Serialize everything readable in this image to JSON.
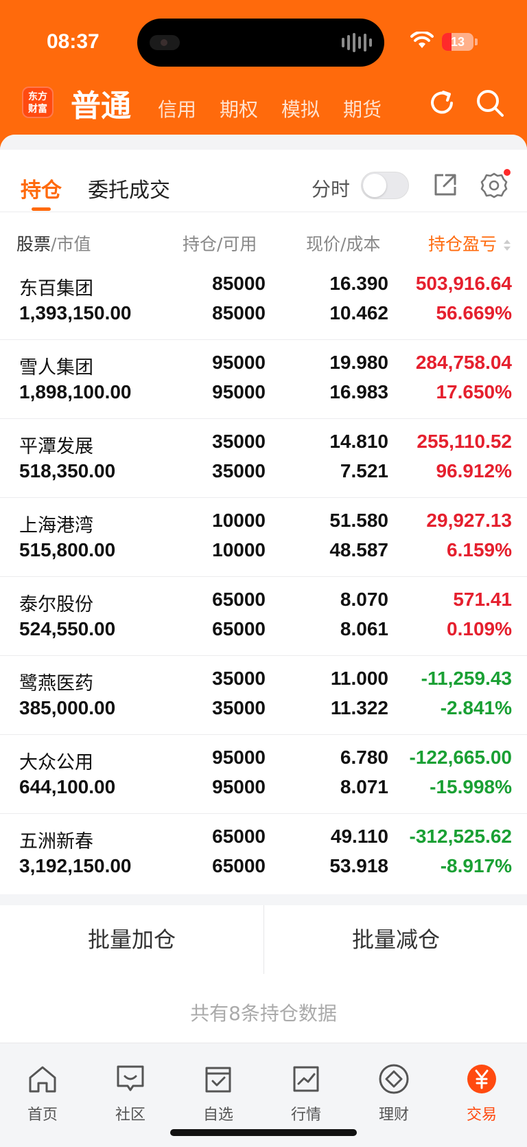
{
  "status_bar": {
    "time": "08:37",
    "battery": "13"
  },
  "header": {
    "logo_text": "东方财富",
    "main_tab": "普通",
    "tabs": [
      "信用",
      "期权",
      "模拟",
      "期货"
    ]
  },
  "subtabs": {
    "holdings": "持仓",
    "orders": "委托成交",
    "time_share": "分时"
  },
  "columns": {
    "stock": "股票",
    "mv": "/市值",
    "pos": "持仓/可用",
    "price": "现价/成本",
    "pl": "持仓盈亏"
  },
  "rows": [
    {
      "name": "东百集团",
      "mv": "1,393,150.00",
      "pos": "85000",
      "avail": "85000",
      "price": "16.390",
      "cost": "10.462",
      "pl": "503,916.64",
      "pct": "56.669%",
      "trend": "up"
    },
    {
      "name": "雪人集团",
      "mv": "1,898,100.00",
      "pos": "95000",
      "avail": "95000",
      "price": "19.980",
      "cost": "16.983",
      "pl": "284,758.04",
      "pct": "17.650%",
      "trend": "up"
    },
    {
      "name": "平潭发展",
      "mv": "518,350.00",
      "pos": "35000",
      "avail": "35000",
      "price": "14.810",
      "cost": "7.521",
      "pl": "255,110.52",
      "pct": "96.912%",
      "trend": "up"
    },
    {
      "name": "上海港湾",
      "mv": "515,800.00",
      "pos": "10000",
      "avail": "10000",
      "price": "51.580",
      "cost": "48.587",
      "pl": "29,927.13",
      "pct": "6.159%",
      "trend": "up"
    },
    {
      "name": "泰尔股份",
      "mv": "524,550.00",
      "pos": "65000",
      "avail": "65000",
      "price": "8.070",
      "cost": "8.061",
      "pl": "571.41",
      "pct": "0.109%",
      "trend": "up"
    },
    {
      "name": "鹭燕医药",
      "mv": "385,000.00",
      "pos": "35000",
      "avail": "35000",
      "price": "11.000",
      "cost": "11.322",
      "pl": "-11,259.43",
      "pct": "-2.841%",
      "trend": "down"
    },
    {
      "name": "大众公用",
      "mv": "644,100.00",
      "pos": "95000",
      "avail": "95000",
      "price": "6.780",
      "cost": "8.071",
      "pl": "-122,665.00",
      "pct": "-15.998%",
      "trend": "down"
    },
    {
      "name": "五洲新春",
      "mv": "3,192,150.00",
      "pos": "65000",
      "avail": "65000",
      "price": "49.110",
      "cost": "53.918",
      "pl": "-312,525.62",
      "pct": "-8.917%",
      "trend": "down"
    }
  ],
  "batch": {
    "add": "批量加仓",
    "reduce": "批量减仓"
  },
  "summary": "共有8条持仓数据",
  "tabbar": [
    {
      "label": "首页",
      "icon": "home-icon"
    },
    {
      "label": "社区",
      "icon": "chat-icon"
    },
    {
      "label": "自选",
      "icon": "watchlist-icon"
    },
    {
      "label": "行情",
      "icon": "chart-icon"
    },
    {
      "label": "理财",
      "icon": "diamond-icon"
    },
    {
      "label": "交易",
      "icon": "yuan-icon",
      "active": true
    }
  ],
  "colors": {
    "brand": "#ff6a0c",
    "up": "#e5202e",
    "down": "#1aa034"
  }
}
